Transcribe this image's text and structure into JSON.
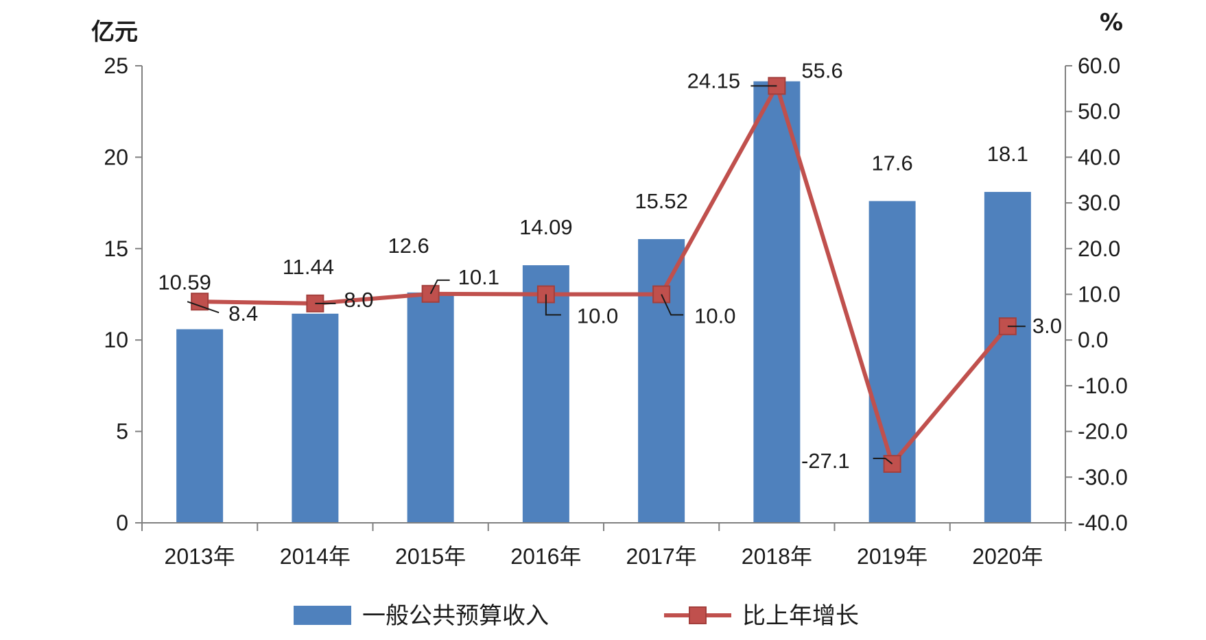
{
  "chart_data": {
    "type": "bar",
    "categories": [
      "2013年",
      "2014年",
      "2015年",
      "2016年",
      "2017年",
      "2018年",
      "2019年",
      "2020年"
    ],
    "series": [
      {
        "name": "一般公共预算收入",
        "type": "bar",
        "axis": "left",
        "values": [
          10.59,
          11.44,
          12.6,
          14.09,
          15.52,
          24.15,
          17.6,
          18.1
        ],
        "labels": [
          "10.59",
          "11.44",
          "12.6",
          "14.09",
          "15.52",
          "24.15",
          "17.6",
          "18.1"
        ],
        "color": "#4F81BD"
      },
      {
        "name": "比上年增长",
        "type": "line",
        "axis": "right",
        "values": [
          8.4,
          8.0,
          10.1,
          10.0,
          10.0,
          55.6,
          -27.1,
          3.0
        ],
        "labels": [
          "8.4",
          "8.0",
          "10.1",
          "10.0",
          "10.0",
          "55.6",
          "-27.1",
          "3.0"
        ],
        "color": "#C0504D",
        "marker": "square"
      }
    ],
    "y_left": {
      "unit": "亿元",
      "range": [
        0,
        25
      ],
      "ticks": [
        "0",
        "5",
        "10",
        "15",
        "20",
        "25"
      ]
    },
    "y_right": {
      "unit": "%",
      "range": [
        -40,
        60
      ],
      "ticks": [
        "-40.0",
        "-30.0",
        "-20.0",
        "-10.0",
        "0.0",
        "10.0",
        "20.0",
        "30.0",
        "40.0",
        "50.0",
        "60.0"
      ]
    },
    "grid": false,
    "legend": "bottom"
  }
}
